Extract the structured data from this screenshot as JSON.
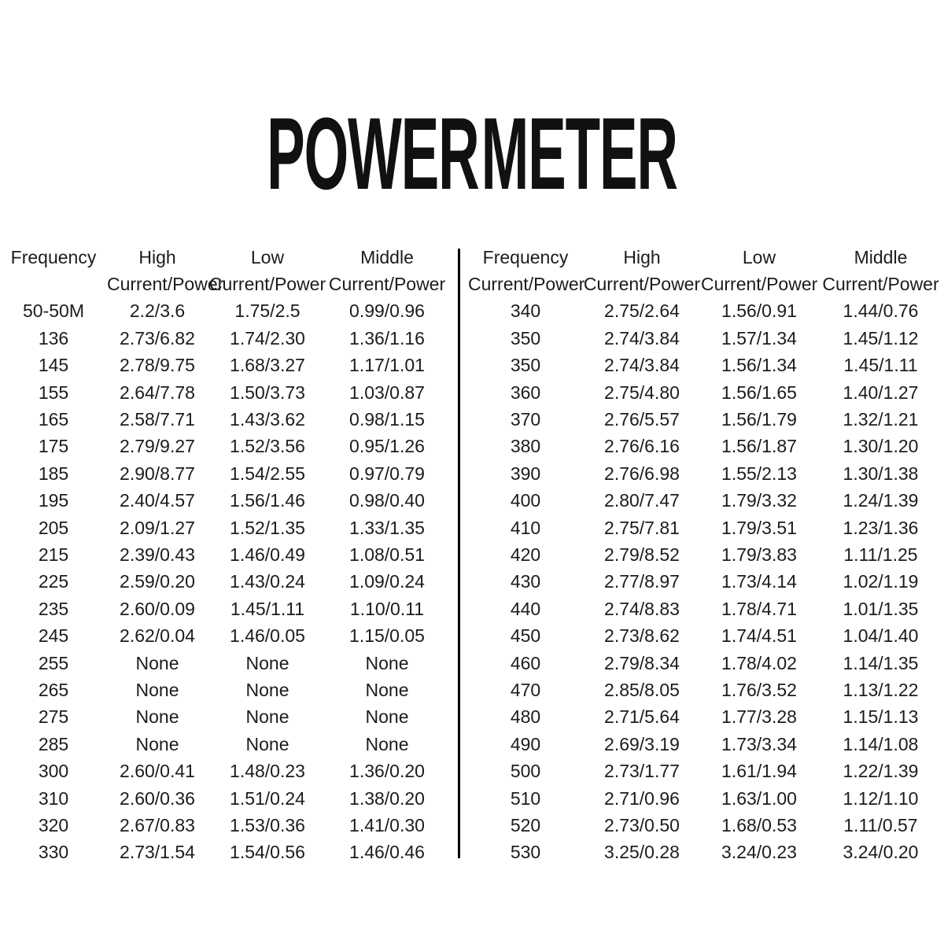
{
  "title": "POWER METER",
  "colors": {
    "background": "#ffffff",
    "title_text": "#111111",
    "table_text": "#1c1c1c",
    "divider": "#000000"
  },
  "chart_data": [
    {
      "type": "table",
      "name": "left-frequency-table",
      "columns": [
        "Frequency",
        "High",
        "Low",
        "Middle"
      ],
      "subcolumns": [
        "",
        "Current/Power",
        "Current/Power",
        "Current/Power"
      ],
      "rows": [
        [
          "50-50M",
          "2.2/3.6",
          "1.75/2.5",
          "0.99/0.96"
        ],
        [
          "136",
          "2.73/6.82",
          "1.74/2.30",
          "1.36/1.16"
        ],
        [
          "145",
          "2.78/9.75",
          "1.68/3.27",
          "1.17/1.01"
        ],
        [
          "155",
          "2.64/7.78",
          "1.50/3.73",
          "1.03/0.87"
        ],
        [
          "165",
          "2.58/7.71",
          "1.43/3.62",
          "0.98/1.15"
        ],
        [
          "175",
          "2.79/9.27",
          "1.52/3.56",
          "0.95/1.26"
        ],
        [
          "185",
          "2.90/8.77",
          "1.54/2.55",
          "0.97/0.79"
        ],
        [
          "195",
          "2.40/4.57",
          "1.56/1.46",
          "0.98/0.40"
        ],
        [
          "205",
          "2.09/1.27",
          "1.52/1.35",
          "1.33/1.35"
        ],
        [
          "215",
          "2.39/0.43",
          "1.46/0.49",
          "1.08/0.51"
        ],
        [
          "225",
          "2.59/0.20",
          "1.43/0.24",
          "1.09/0.24"
        ],
        [
          "235",
          "2.60/0.09",
          "1.45/1.11",
          "1.10/0.11"
        ],
        [
          "245",
          "2.62/0.04",
          "1.46/0.05",
          "1.15/0.05"
        ],
        [
          "255",
          "None",
          "None",
          "None"
        ],
        [
          "265",
          "None",
          "None",
          "None"
        ],
        [
          "275",
          "None",
          "None",
          "None"
        ],
        [
          "285",
          "None",
          "None",
          "None"
        ],
        [
          "300",
          "2.60/0.41",
          "1.48/0.23",
          "1.36/0.20"
        ],
        [
          "310",
          "2.60/0.36",
          "1.51/0.24",
          "1.38/0.20"
        ],
        [
          "320",
          "2.67/0.83",
          "1.53/0.36",
          "1.41/0.30"
        ],
        [
          "330",
          "2.73/1.54",
          "1.54/0.56",
          "1.46/0.46"
        ]
      ]
    },
    {
      "type": "table",
      "name": "right-frequency-table",
      "columns": [
        "Frequency",
        "High",
        "Low",
        "Middle"
      ],
      "subcolumns": [
        "Current/Power",
        "Current/Power",
        "Current/Power",
        "Current/Power"
      ],
      "rows": [
        [
          "340",
          "2.75/2.64",
          "1.56/0.91",
          "1.44/0.76"
        ],
        [
          "350",
          "2.74/3.84",
          "1.57/1.34",
          "1.45/1.12"
        ],
        [
          "350",
          "2.74/3.84",
          "1.56/1.34",
          "1.45/1.11"
        ],
        [
          "360",
          "2.75/4.80",
          "1.56/1.65",
          "1.40/1.27"
        ],
        [
          "370",
          "2.76/5.57",
          "1.56/1.79",
          "1.32/1.21"
        ],
        [
          "380",
          "2.76/6.16",
          "1.56/1.87",
          "1.30/1.20"
        ],
        [
          "390",
          "2.76/6.98",
          "1.55/2.13",
          "1.30/1.38"
        ],
        [
          "400",
          "2.80/7.47",
          "1.79/3.32",
          "1.24/1.39"
        ],
        [
          "410",
          "2.75/7.81",
          "1.79/3.51",
          "1.23/1.36"
        ],
        [
          "420",
          "2.79/8.52",
          "1.79/3.83",
          "1.11/1.25"
        ],
        [
          "430",
          "2.77/8.97",
          "1.73/4.14",
          "1.02/1.19"
        ],
        [
          "440",
          "2.74/8.83",
          "1.78/4.71",
          "1.01/1.35"
        ],
        [
          "450",
          "2.73/8.62",
          "1.74/4.51",
          "1.04/1.40"
        ],
        [
          "460",
          "2.79/8.34",
          "1.78/4.02",
          "1.14/1.35"
        ],
        [
          "470",
          "2.85/8.05",
          "1.76/3.52",
          "1.13/1.22"
        ],
        [
          "480",
          "2.71/5.64",
          "1.77/3.28",
          "1.15/1.13"
        ],
        [
          "490",
          "2.69/3.19",
          "1.73/3.34",
          "1.14/1.08"
        ],
        [
          "500",
          "2.73/1.77",
          "1.61/1.94",
          "1.22/1.39"
        ],
        [
          "510",
          "2.71/0.96",
          "1.63/1.00",
          "1.12/1.10"
        ],
        [
          "520",
          "2.73/0.50",
          "1.68/0.53",
          "1.11/0.57"
        ],
        [
          "530",
          "3.25/0.28",
          "3.24/0.23",
          "3.24/0.20"
        ]
      ]
    }
  ]
}
